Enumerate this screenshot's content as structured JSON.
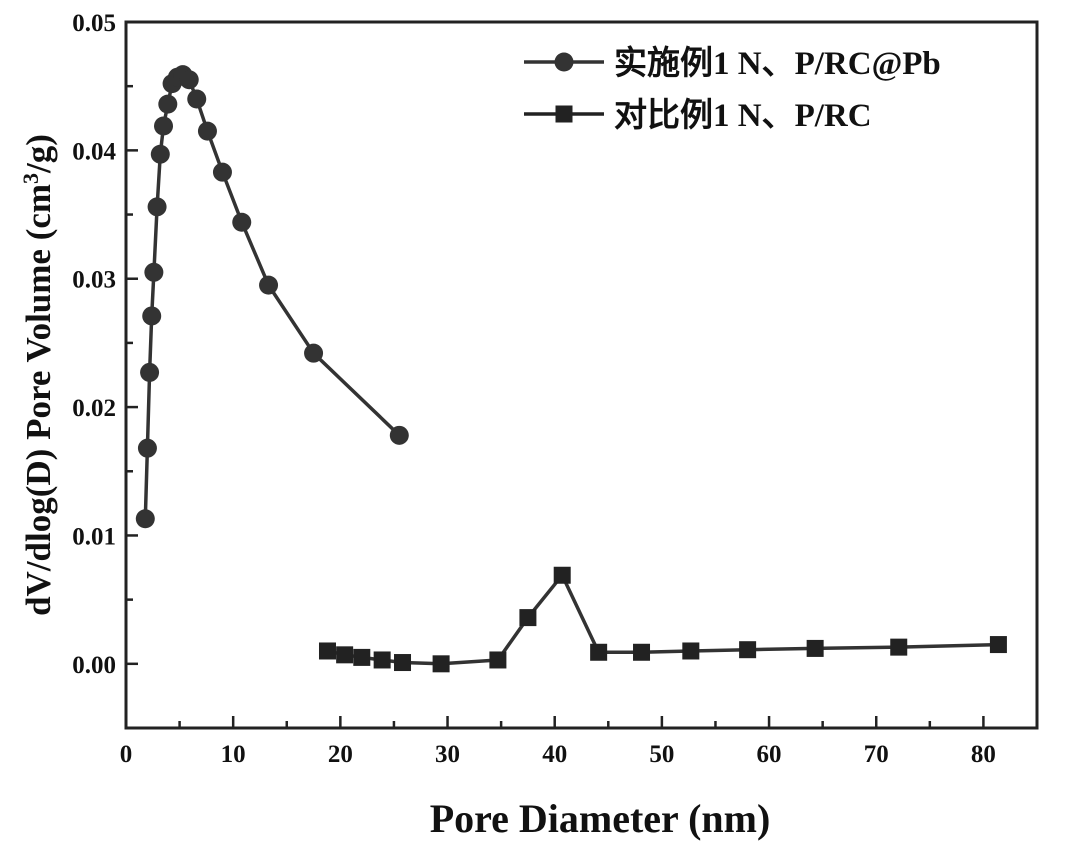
{
  "chart_data": {
    "type": "line",
    "xlabel": "Pore Diameter (nm)",
    "ylabel_prefix": "dV/dlog(D) Pore Volume (cm",
    "ylabel_sup": "3",
    "ylabel_suffix": "/g)",
    "xlim": [
      0,
      85
    ],
    "ylim": [
      -0.005,
      0.05
    ],
    "xticks": [
      0,
      10,
      20,
      30,
      40,
      50,
      60,
      70,
      80
    ],
    "xtick_labels": [
      "0",
      "10",
      "20",
      "30",
      "40",
      "50",
      "60",
      "70",
      "80"
    ],
    "yticks": [
      0.0,
      0.01,
      0.02,
      0.03,
      0.04,
      0.05
    ],
    "ytick_labels": [
      "0.00",
      "0.01",
      "0.02",
      "0.03",
      "0.04",
      "0.05"
    ],
    "grid": false,
    "legend_position": "top-right",
    "series": [
      {
        "name": "实施例1 N、P/RC@Pb",
        "marker": "circle",
        "color": "#333333",
        "x": [
          1.8,
          2.0,
          2.2,
          2.4,
          2.6,
          2.9,
          3.2,
          3.5,
          3.9,
          4.3,
          4.8,
          5.3,
          5.9,
          6.6,
          7.6,
          9.0,
          10.8,
          13.3,
          17.5,
          25.5
        ],
        "y": [
          0.0113,
          0.0168,
          0.0227,
          0.0271,
          0.0305,
          0.0356,
          0.0397,
          0.0419,
          0.0436,
          0.0452,
          0.0457,
          0.0459,
          0.0455,
          0.044,
          0.0415,
          0.0383,
          0.0344,
          0.0295,
          0.0242,
          0.0178
        ]
      },
      {
        "name": "对比例1 N、P/RC",
        "marker": "square",
        "color": "#222222",
        "x": [
          18.8,
          20.4,
          22.0,
          23.9,
          25.8,
          29.4,
          34.7,
          37.5,
          40.7,
          44.1,
          48.1,
          52.7,
          58.0,
          64.3,
          72.1,
          81.4
        ],
        "y": [
          0.001,
          0.0007,
          0.0005,
          0.0003,
          0.0001,
          0.0,
          0.0003,
          0.0036,
          0.0069,
          0.0009,
          0.0009,
          0.001,
          0.0011,
          0.0012,
          0.0013,
          0.0015
        ]
      }
    ]
  }
}
